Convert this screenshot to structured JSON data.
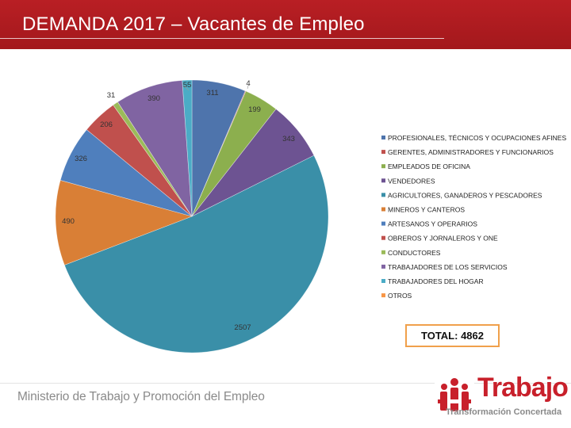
{
  "header": {
    "title": "DEMANDA 2017 – Vacantes  de Empleo"
  },
  "chart_data": {
    "type": "pie",
    "title": "",
    "start_angle_deg": 0,
    "direction": "clockwise",
    "slices": [
      {
        "label": "PROFESIONALES, TÉCNICOS Y OCUPACIONES AFINES",
        "value": 311,
        "display_value": "311",
        "color": "#4e74ac"
      },
      {
        "label": "GERENTES, ADMINISTRADORES Y FUNCIONARIOS",
        "value": 4,
        "display_value": "4",
        "color": "#c0504d"
      },
      {
        "label": "EMPLEADOS DE OFICINA",
        "value": 199,
        "display_value": "199",
        "color": "#8caf4e"
      },
      {
        "label": "VENDEDORES",
        "value": 343,
        "display_value": "343",
        "color": "#6d5392"
      },
      {
        "label": "AGRICULTORES, GANADEROS Y PESCADORES",
        "value": 2507,
        "display_value": "2507",
        "color": "#3a8fa8"
      },
      {
        "label": "MINEROS Y CANTEROS",
        "value": 490,
        "display_value": "490",
        "color": "#d97f36"
      },
      {
        "label": "ARTESANOS Y OPERARIOS",
        "value": 326,
        "display_value": "326",
        "color": "#4f7fbd"
      },
      {
        "label": "OBREROS Y JORNALEROS Y ONE",
        "value": 206,
        "display_value": "206",
        "color": "#c0504d"
      },
      {
        "label": "CONDUCTORES",
        "value": 31,
        "display_value": "31",
        "color": "#9bbb59"
      },
      {
        "label": "TRABAJADORES DE LOS SERVICIOS",
        "value": 390,
        "display_value": "390",
        "color": "#8064a2"
      },
      {
        "label": "TRABAJADORES DEL HOGAR",
        "value": 55,
        "display_value": "55",
        "color": "#4bacc6"
      },
      {
        "label": "OTROS",
        "value": 0,
        "display_value": "",
        "color": "#f79646"
      }
    ],
    "legend_position": "right"
  },
  "total": {
    "text": "TOTAL: 4862",
    "border_color": "#f0a04b"
  },
  "footer": {
    "ministry": "Ministerio de Trabajo y Promoción del Empleo",
    "logo_word": "Trabajo",
    "logo_tagline": "Transformación Concertada",
    "logo_icon": "people-logo-icon",
    "brand_red": "#c8202b"
  }
}
